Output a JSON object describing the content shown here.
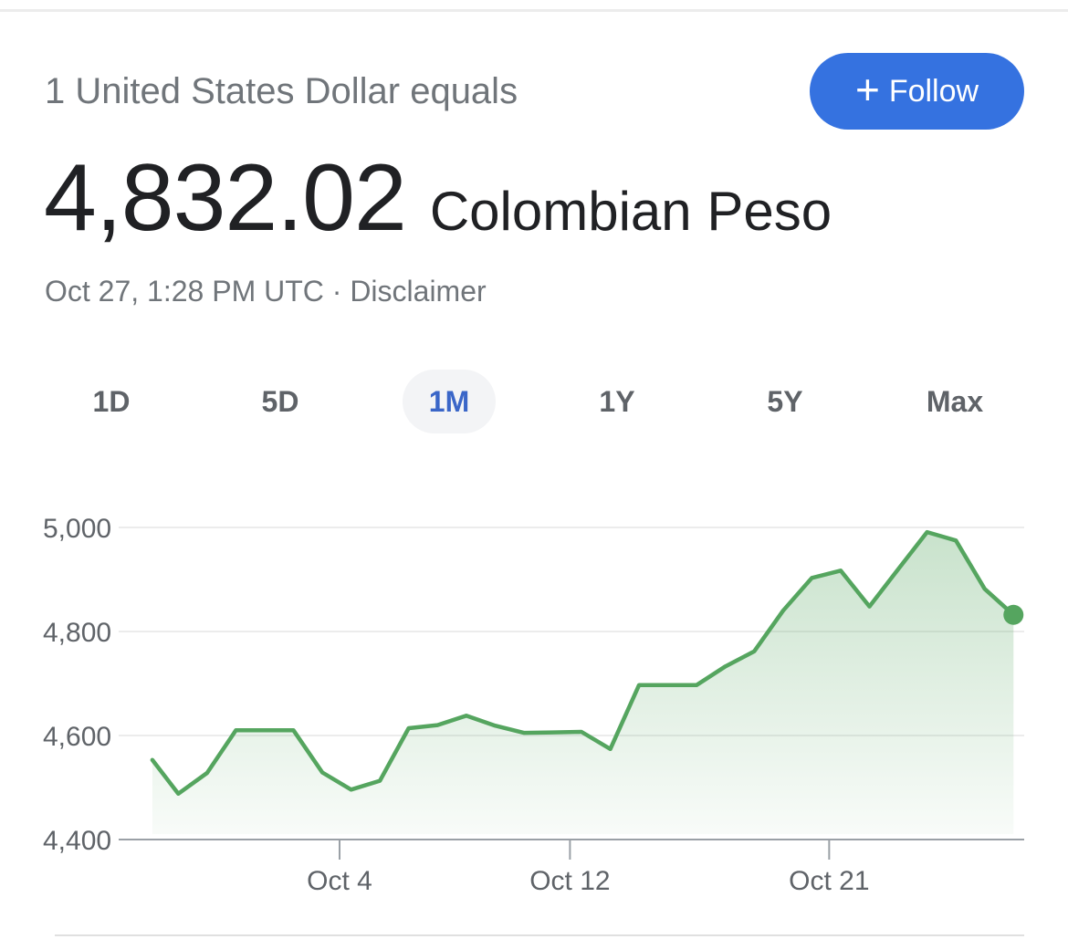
{
  "header": {
    "headline": "1 United States Dollar equals",
    "follow_label": "Follow",
    "follow_icon": "plus-icon"
  },
  "rate": {
    "value": "4,832.02",
    "currency": "Colombian Peso"
  },
  "meta": {
    "timestamp": "Oct 27, 1:28 PM UTC",
    "separator": "·",
    "disclaimer": "Disclaimer"
  },
  "range_tabs": [
    {
      "label": "1D",
      "active": false
    },
    {
      "label": "5D",
      "active": false
    },
    {
      "label": "1M",
      "active": true
    },
    {
      "label": "1Y",
      "active": false
    },
    {
      "label": "5Y",
      "active": false
    },
    {
      "label": "Max",
      "active": false
    }
  ],
  "colors": {
    "accent": "#3572e0",
    "line": "#55a55f",
    "active_tab_text": "#3a66c8"
  },
  "chart_data": {
    "type": "area",
    "title": "",
    "xlabel": "",
    "ylabel": "",
    "ylim": [
      4400,
      5000
    ],
    "y_ticks": [
      5000,
      4800,
      4600,
      4400
    ],
    "y_tick_labels": [
      "5,000",
      "4,800",
      "4,600",
      "4,400"
    ],
    "x_tick_labels": [
      "Oct 4",
      "Oct 12",
      "Oct 21"
    ],
    "x_tick_days": [
      4,
      12,
      21
    ],
    "grid": true,
    "series": [
      {
        "x": [
          -2.5,
          -1.6,
          -0.6,
          0.4,
          1.4,
          2.4,
          3.4,
          4.4,
          5.4,
          6.4,
          7.4,
          8.4,
          9.4,
          10.4,
          11.4,
          12.4,
          13.4,
          14.4,
          15.4,
          16.4,
          17.4,
          18.4,
          19.4,
          20.4,
          21.4,
          22.4,
          23.4,
          24.4,
          25.4,
          26.4,
          27.4
        ],
        "values": [
          4553,
          4488,
          4528,
          4610,
          4610,
          4610,
          4529,
          4496,
          4513,
          4614,
          4620,
          4638,
          4619,
          4605,
          4606,
          4607,
          4574,
          4697,
          4697,
          4697,
          4733,
          4762,
          4840,
          4903,
          4917,
          4848,
          4920,
          4991,
          4975,
          4882,
          4832
        ]
      }
    ]
  }
}
